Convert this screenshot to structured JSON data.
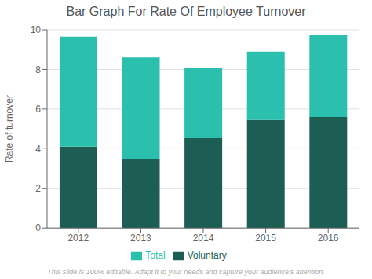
{
  "chart_data": {
    "type": "bar",
    "title": "Bar Graph For Rate Of Employee Turnover",
    "subtitle": "This slide is 100% editable. Adapt it to your needs and capture your audience's attention.",
    "ylabel": "Rate of  turnover",
    "categories": [
      "2012",
      "2013",
      "2014",
      "2015",
      "2016"
    ],
    "series": [
      {
        "name": "Voluntary",
        "color": "#1c5e54",
        "values": [
          4.1,
          3.5,
          4.55,
          5.45,
          5.6
        ]
      },
      {
        "name": "Total",
        "color": "#2bbfad",
        "values": [
          5.55,
          5.1,
          3.55,
          3.45,
          4.15
        ]
      }
    ],
    "stacked": true,
    "ylim": [
      0,
      10
    ],
    "yticks": [
      0,
      2,
      4,
      6,
      8,
      10
    ],
    "grid": true,
    "legend": "bottom"
  }
}
